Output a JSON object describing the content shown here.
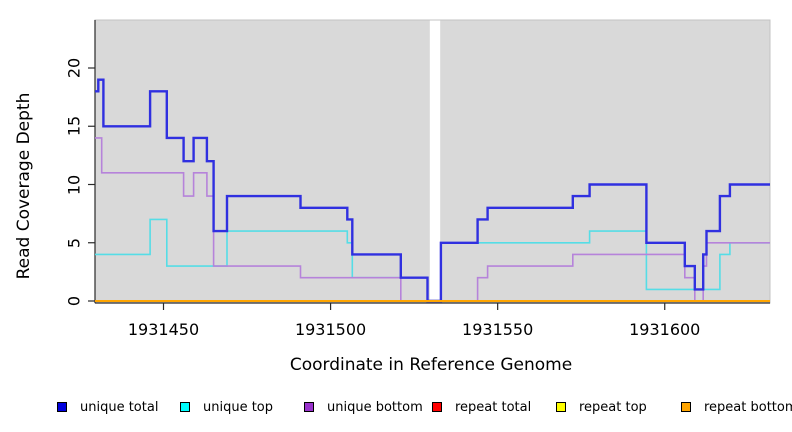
{
  "chart_data": {
    "type": "line",
    "subtype": "step-coverage",
    "title": "",
    "xlabel": "Coordinate in Reference Genome",
    "ylabel": "Read Coverage Depth",
    "xlim": [
      1931429.5,
      1931631.5
    ],
    "ylim": [
      0,
      24.1
    ],
    "x_ticks": [
      "1931450",
      "1931500",
      "1931550",
      "1931600"
    ],
    "x_tick_values": [
      1931450,
      1931500,
      1931550,
      1931600
    ],
    "y_ticks": [
      "0",
      "5",
      "10",
      "15",
      "20"
    ],
    "y_tick_values": [
      0,
      5,
      10,
      15,
      20
    ],
    "grid": false,
    "panel_background": "#d9d9d9",
    "panel_border": "#c3c3c3",
    "gap_band": {
      "x1": 1931529.7,
      "x2": 1931532.8,
      "color": "#ffffff"
    },
    "legend_position": "bottom",
    "legend": [
      {
        "label": "unique total",
        "color": "#0000dd"
      },
      {
        "label": "unique top",
        "color": "#00ffff"
      },
      {
        "label": "unique bottom",
        "color": "#9932cc"
      },
      {
        "label": "repeat total",
        "color": "#ff0000"
      },
      {
        "label": "repeat top",
        "color": "#ffff00"
      },
      {
        "label": "repeat bottom",
        "color": "#ffa500"
      }
    ],
    "series": [
      {
        "name": "unique top",
        "color": "#55dde6",
        "width": 1.6,
        "xend": 1931631.5,
        "steps": [
          [
            1931429.5,
            4
          ],
          [
            1931446,
            7
          ],
          [
            1931451,
            3
          ],
          [
            1931469,
            6
          ],
          [
            1931505,
            5
          ],
          [
            1931506.5,
            2
          ],
          [
            1931529,
            0
          ],
          [
            1931533,
            5
          ],
          [
            1931577.5,
            6
          ],
          [
            1931594.5,
            1
          ],
          [
            1931616.5,
            4
          ],
          [
            1931619.5,
            5
          ]
        ]
      },
      {
        "name": "unique bottom",
        "color": "#b683da",
        "width": 1.6,
        "xend": 1931631.5,
        "steps": [
          [
            1931429.5,
            14
          ],
          [
            1931431.5,
            11
          ],
          [
            1931456,
            9
          ],
          [
            1931459,
            11
          ],
          [
            1931463,
            9
          ],
          [
            1931465,
            3
          ],
          [
            1931491,
            2
          ],
          [
            1931521,
            0
          ],
          [
            1931544,
            2
          ],
          [
            1931547,
            3
          ],
          [
            1931572.5,
            4
          ],
          [
            1931606,
            2
          ],
          [
            1931609,
            0
          ],
          [
            1931611.5,
            3
          ],
          [
            1931612.5,
            5
          ]
        ]
      },
      {
        "name": "unique total",
        "color": "#3030e0",
        "width": 2.4,
        "xend": 1931631.5,
        "steps": [
          [
            1931429.5,
            18
          ],
          [
            1931430.5,
            19
          ],
          [
            1931432,
            15
          ],
          [
            1931446,
            18
          ],
          [
            1931451,
            14
          ],
          [
            1931456,
            12
          ],
          [
            1931459,
            14
          ],
          [
            1931463,
            12
          ],
          [
            1931465,
            6
          ],
          [
            1931469,
            9
          ],
          [
            1931491,
            8
          ],
          [
            1931505,
            7
          ],
          [
            1931506.5,
            4
          ],
          [
            1931521,
            2
          ],
          [
            1931529,
            0
          ],
          [
            1931533,
            5
          ],
          [
            1931544,
            7
          ],
          [
            1931547,
            8
          ],
          [
            1931572.5,
            9
          ],
          [
            1931577.5,
            10
          ],
          [
            1931594.5,
            5
          ],
          [
            1931606,
            3
          ],
          [
            1931609,
            1
          ],
          [
            1931611.5,
            4
          ],
          [
            1931612.5,
            6
          ],
          [
            1931616.5,
            9
          ],
          [
            1931619.5,
            10
          ]
        ]
      },
      {
        "name": "repeat total",
        "color": "#ff0000",
        "width": 1.5,
        "xend": 1931631.5,
        "steps": [
          [
            1931429.5,
            0
          ]
        ]
      },
      {
        "name": "repeat top",
        "color": "#ffff00",
        "width": 1.5,
        "xend": 1931631.5,
        "steps": [
          [
            1931429.5,
            0
          ]
        ]
      },
      {
        "name": "repeat bottom",
        "color": "#ffa500",
        "width": 1.9,
        "xend": 1931631.5,
        "steps": [
          [
            1931429.5,
            0
          ]
        ]
      }
    ]
  }
}
